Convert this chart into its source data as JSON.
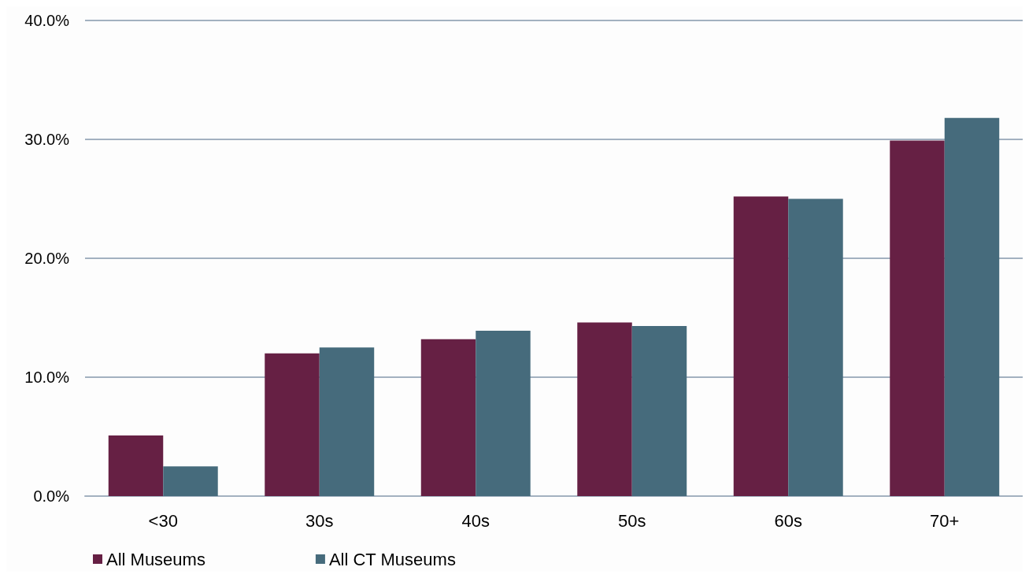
{
  "chart_data": {
    "type": "bar",
    "categories": [
      "<30",
      "30s",
      "40s",
      "50s",
      "60s",
      "70+"
    ],
    "series": [
      {
        "name": "All Museums",
        "color": "#662044",
        "values": [
          5.1,
          12.0,
          13.2,
          14.6,
          25.2,
          29.9
        ]
      },
      {
        "name": "All CT Museums",
        "color": "#466b7c",
        "values": [
          2.5,
          12.5,
          13.9,
          14.3,
          25.0,
          31.8
        ]
      }
    ],
    "ylim": [
      0,
      40
    ],
    "yticks": [
      {
        "value": 0,
        "label": "0.0%"
      },
      {
        "value": 10,
        "label": "10.0%"
      },
      {
        "value": 20,
        "label": "20.0%"
      },
      {
        "value": 30,
        "label": "30.0%"
      },
      {
        "value": 40,
        "label": "40.0%"
      }
    ],
    "grid": "y",
    "legend": "bottom left"
  }
}
